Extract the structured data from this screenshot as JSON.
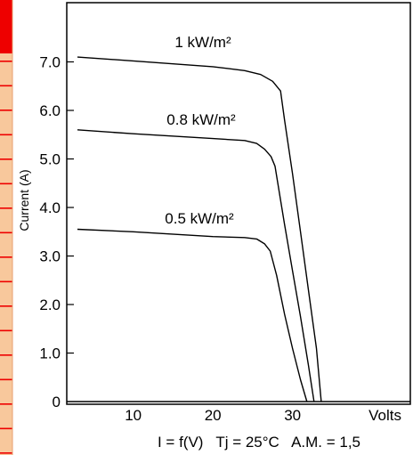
{
  "chart_data": {
    "type": "line",
    "title": "",
    "xlabel": "Volts",
    "ylabel": "Current (A)",
    "caption": "I = f(V)   Tj = 25°C   A.M. = 1,5",
    "xlim": [
      3,
      37
    ],
    "ylim": [
      0,
      8
    ],
    "x_ticks": [
      {
        "value": 10,
        "label": "10"
      },
      {
        "value": 20,
        "label": "20"
      },
      {
        "value": 30,
        "label": "30"
      }
    ],
    "y_ticks": [
      {
        "value": 0,
        "label": "0"
      },
      {
        "value": 1,
        "label": "1.0"
      },
      {
        "value": 2,
        "label": "2.0"
      },
      {
        "value": 3,
        "label": "3.0"
      },
      {
        "value": 4,
        "label": "4.0"
      },
      {
        "value": 5,
        "label": "5.0"
      },
      {
        "value": 6,
        "label": "6.0"
      },
      {
        "value": 7,
        "label": "7.0"
      }
    ],
    "grid": false,
    "series": [
      {
        "name": "1 kW/m²",
        "x": [
          3,
          10,
          20,
          24,
          26,
          27.5,
          28.5,
          29,
          30,
          31,
          32,
          33,
          33.6
        ],
        "y": [
          7.1,
          7.02,
          6.9,
          6.82,
          6.74,
          6.6,
          6.4,
          5.8,
          4.7,
          3.5,
          2.3,
          1.1,
          0
        ]
      },
      {
        "name": "0.8 kW/m²",
        "x": [
          3,
          10,
          20,
          24,
          25.5,
          26.5,
          27.3,
          27.8,
          29,
          30,
          31,
          32,
          32.7
        ],
        "y": [
          5.6,
          5.52,
          5.42,
          5.38,
          5.32,
          5.2,
          5.05,
          4.85,
          3.65,
          2.7,
          1.75,
          0.75,
          0
        ]
      },
      {
        "name": "0.5 kW/m²",
        "x": [
          3,
          10,
          20,
          24,
          25.5,
          26.5,
          27.2,
          28,
          29,
          30,
          31,
          31.8
        ],
        "y": [
          3.55,
          3.5,
          3.4,
          3.38,
          3.35,
          3.25,
          3.1,
          2.6,
          1.8,
          1.1,
          0.45,
          0
        ]
      }
    ],
    "left_strip": {
      "accent_color": "#ee0000",
      "fill_color": "#f8c89c",
      "tick_color": "#ee0000"
    }
  }
}
